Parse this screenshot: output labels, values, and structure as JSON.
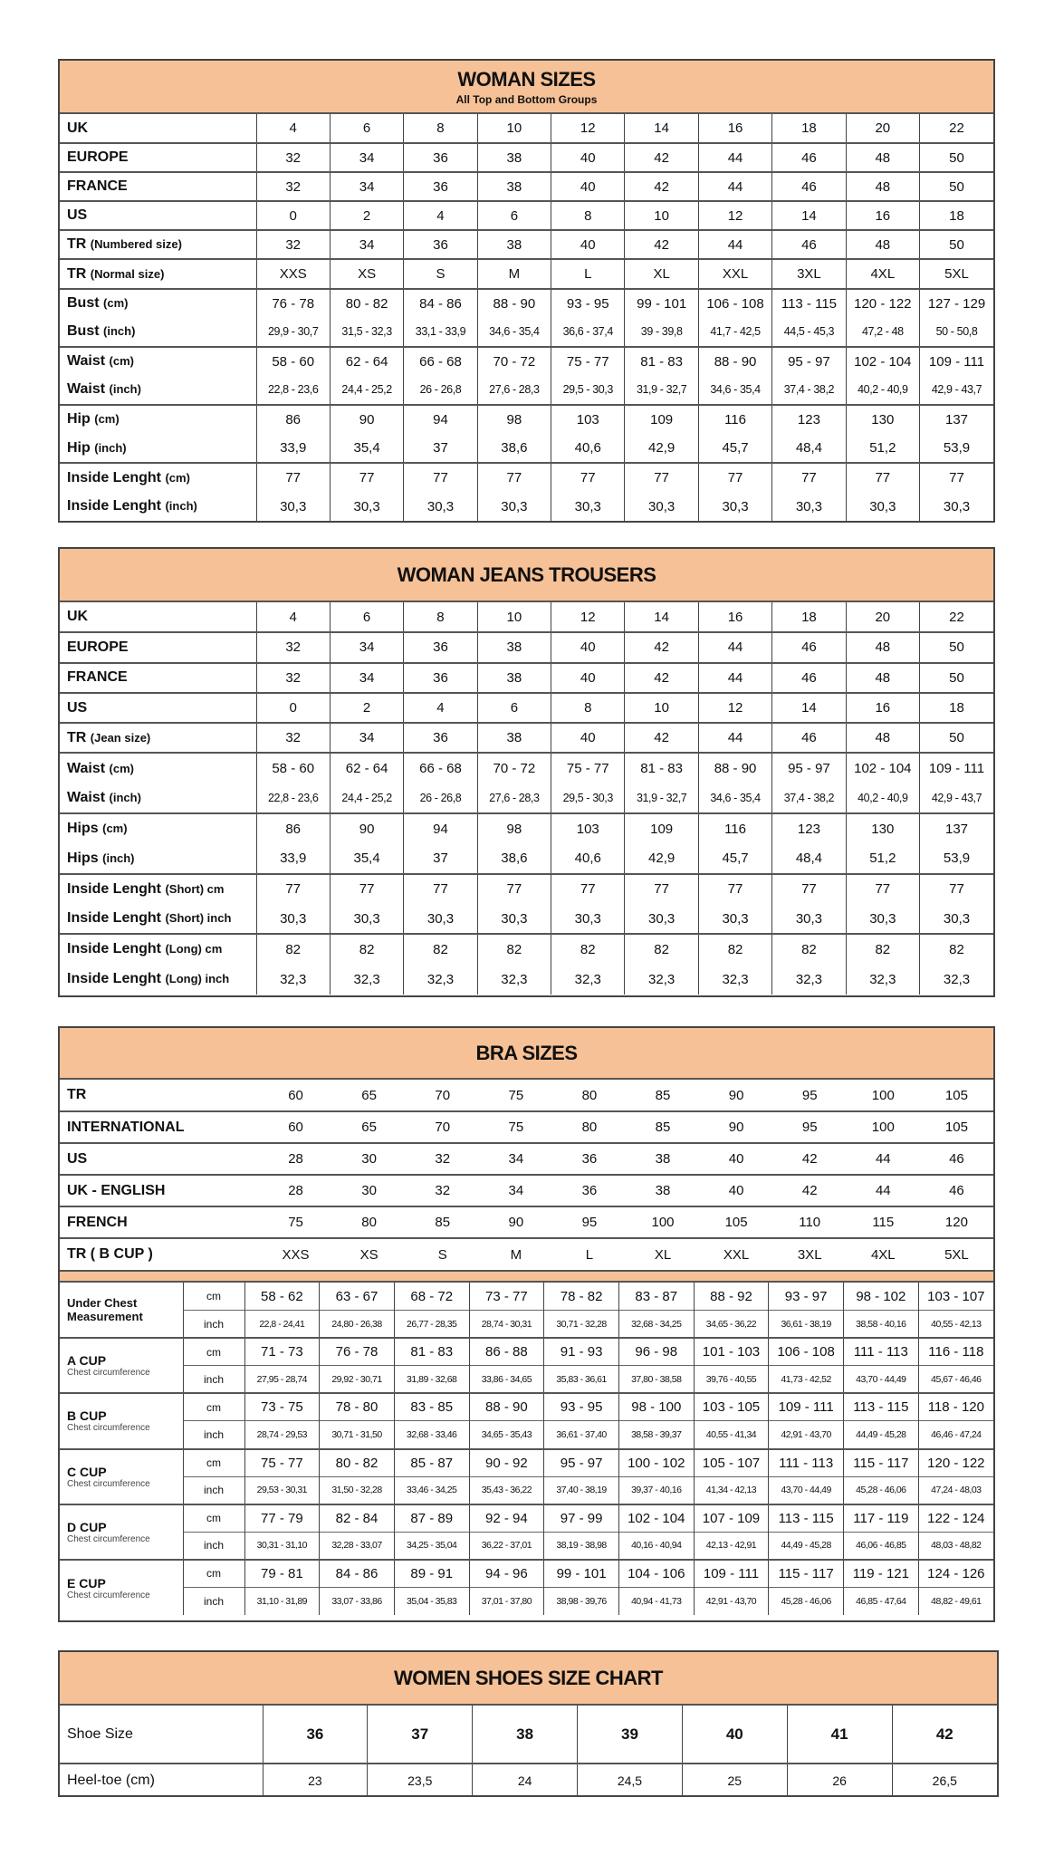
{
  "accent_color": "#f6c196",
  "woman_sizes": {
    "title": "WOMAN SIZES",
    "subtitle": "All Top and Bottom Groups",
    "groups": [
      [
        {
          "label": "UK",
          "sub": "",
          "values": [
            "4",
            "6",
            "8",
            "10",
            "12",
            "14",
            "16",
            "18",
            "20",
            "22"
          ]
        }
      ],
      [
        {
          "label": "EUROPE",
          "sub": "",
          "values": [
            "32",
            "34",
            "36",
            "38",
            "40",
            "42",
            "44",
            "46",
            "48",
            "50"
          ]
        }
      ],
      [
        {
          "label": "FRANCE",
          "sub": "",
          "values": [
            "32",
            "34",
            "36",
            "38",
            "40",
            "42",
            "44",
            "46",
            "48",
            "50"
          ]
        }
      ],
      [
        {
          "label": "US",
          "sub": "",
          "values": [
            "0",
            "2",
            "4",
            "6",
            "8",
            "10",
            "12",
            "14",
            "16",
            "18"
          ]
        }
      ],
      [
        {
          "label": "TR",
          "sub": "(Numbered size)",
          "values": [
            "32",
            "34",
            "36",
            "38",
            "40",
            "42",
            "44",
            "46",
            "48",
            "50"
          ]
        }
      ],
      [
        {
          "label": "TR",
          "sub": "(Normal size)",
          "values": [
            "XXS",
            "XS",
            "S",
            "M",
            "L",
            "XL",
            "XXL",
            "3XL",
            "4XL",
            "5XL"
          ]
        }
      ],
      [
        {
          "label": "Bust",
          "sub": "(cm)",
          "values": [
            "76 - 78",
            "80 - 82",
            "84 - 86",
            "88 - 90",
            "93 - 95",
            "99 - 101",
            "106 - 108",
            "113 - 115",
            "120 - 122",
            "127 - 129"
          ]
        },
        {
          "label": "Bust",
          "sub": "(inch)",
          "small": true,
          "values": [
            "29,9 - 30,7",
            "31,5 - 32,3",
            "33,1 - 33,9",
            "34,6 - 35,4",
            "36,6 - 37,4",
            "39 - 39,8",
            "41,7 - 42,5",
            "44,5 - 45,3",
            "47,2 - 48",
            "50 - 50,8"
          ]
        }
      ],
      [
        {
          "label": "Waist",
          "sub": "(cm)",
          "values": [
            "58 - 60",
            "62 - 64",
            "66 - 68",
            "70 - 72",
            "75 - 77",
            "81 - 83",
            "88 - 90",
            "95 - 97",
            "102 - 104",
            "109 - 111"
          ]
        },
        {
          "label": "Waist",
          "sub": "(inch)",
          "small": true,
          "values": [
            "22,8 - 23,6",
            "24,4 - 25,2",
            "26 - 26,8",
            "27,6 - 28,3",
            "29,5 - 30,3",
            "31,9 - 32,7",
            "34,6 - 35,4",
            "37,4 - 38,2",
            "40,2 - 40,9",
            "42,9 - 43,7"
          ]
        }
      ],
      [
        {
          "label": "Hip",
          "sub": "(cm)",
          "values": [
            "86",
            "90",
            "94",
            "98",
            "103",
            "109",
            "116",
            "123",
            "130",
            "137"
          ]
        },
        {
          "label": "Hip",
          "sub": "(inch)",
          "values": [
            "33,9",
            "35,4",
            "37",
            "38,6",
            "40,6",
            "42,9",
            "45,7",
            "48,4",
            "51,2",
            "53,9"
          ]
        }
      ],
      [
        {
          "label": "Inside Lenght",
          "sub": "(cm)",
          "values": [
            "77",
            "77",
            "77",
            "77",
            "77",
            "77",
            "77",
            "77",
            "77",
            "77"
          ]
        },
        {
          "label": "Inside Lenght",
          "sub": "(inch)",
          "values": [
            "30,3",
            "30,3",
            "30,3",
            "30,3",
            "30,3",
            "30,3",
            "30,3",
            "30,3",
            "30,3",
            "30,3"
          ]
        }
      ]
    ]
  },
  "jeans": {
    "title": "WOMAN JEANS TROUSERS",
    "groups": [
      [
        {
          "label": "UK",
          "sub": "",
          "values": [
            "4",
            "6",
            "8",
            "10",
            "12",
            "14",
            "16",
            "18",
            "20",
            "22"
          ]
        }
      ],
      [
        {
          "label": "EUROPE",
          "sub": "",
          "values": [
            "32",
            "34",
            "36",
            "38",
            "40",
            "42",
            "44",
            "46",
            "48",
            "50"
          ]
        }
      ],
      [
        {
          "label": "FRANCE",
          "sub": "",
          "values": [
            "32",
            "34",
            "36",
            "38",
            "40",
            "42",
            "44",
            "46",
            "48",
            "50"
          ]
        }
      ],
      [
        {
          "label": "US",
          "sub": "",
          "values": [
            "0",
            "2",
            "4",
            "6",
            "8",
            "10",
            "12",
            "14",
            "16",
            "18"
          ]
        }
      ],
      [
        {
          "label": "TR",
          "sub": "(Jean size)",
          "values": [
            "32",
            "34",
            "36",
            "38",
            "40",
            "42",
            "44",
            "46",
            "48",
            "50"
          ]
        }
      ],
      [
        {
          "label": "Waist",
          "sub": "(cm)",
          "values": [
            "58 - 60",
            "62 - 64",
            "66 - 68",
            "70 - 72",
            "75 - 77",
            "81 - 83",
            "88 - 90",
            "95 - 97",
            "102 - 104",
            "109 - 111"
          ]
        },
        {
          "label": "Waist",
          "sub": "(inch)",
          "small": true,
          "values": [
            "22,8 - 23,6",
            "24,4 - 25,2",
            "26 - 26,8",
            "27,6 - 28,3",
            "29,5 - 30,3",
            "31,9 - 32,7",
            "34,6 - 35,4",
            "37,4 - 38,2",
            "40,2 - 40,9",
            "42,9 - 43,7"
          ]
        }
      ],
      [
        {
          "label": "Hips",
          "sub": "(cm)",
          "values": [
            "86",
            "90",
            "94",
            "98",
            "103",
            "109",
            "116",
            "123",
            "130",
            "137"
          ]
        },
        {
          "label": "Hips",
          "sub": "(inch)",
          "values": [
            "33,9",
            "35,4",
            "37",
            "38,6",
            "40,6",
            "42,9",
            "45,7",
            "48,4",
            "51,2",
            "53,9"
          ]
        }
      ],
      [
        {
          "label": "Inside Lenght",
          "sub": "(Short) cm",
          "values": [
            "77",
            "77",
            "77",
            "77",
            "77",
            "77",
            "77",
            "77",
            "77",
            "77"
          ]
        },
        {
          "label": "Inside Lenght",
          "sub": "(Short) inch",
          "values": [
            "30,3",
            "30,3",
            "30,3",
            "30,3",
            "30,3",
            "30,3",
            "30,3",
            "30,3",
            "30,3",
            "30,3"
          ]
        }
      ],
      [
        {
          "label": "Inside Lenght",
          "sub": "(Long) cm",
          "values": [
            "82",
            "82",
            "82",
            "82",
            "82",
            "82",
            "82",
            "82",
            "82",
            "82"
          ]
        },
        {
          "label": "Inside Lenght",
          "sub": "(Long) inch",
          "values": [
            "32,3",
            "32,3",
            "32,3",
            "32,3",
            "32,3",
            "32,3",
            "32,3",
            "32,3",
            "32,3",
            "32,3"
          ]
        }
      ]
    ]
  },
  "bra": {
    "title": "BRA SIZES",
    "rows": [
      {
        "label": "TR",
        "values": [
          "60",
          "65",
          "70",
          "75",
          "80",
          "85",
          "90",
          "95",
          "100",
          "105"
        ]
      },
      {
        "label": "INTERNATIONAL",
        "values": [
          "60",
          "65",
          "70",
          "75",
          "80",
          "85",
          "90",
          "95",
          "100",
          "105"
        ]
      },
      {
        "label": "US",
        "values": [
          "28",
          "30",
          "32",
          "34",
          "36",
          "38",
          "40",
          "42",
          "44",
          "46"
        ]
      },
      {
        "label": "UK - ENGLISH",
        "values": [
          "28",
          "30",
          "32",
          "34",
          "36",
          "38",
          "40",
          "42",
          "44",
          "46"
        ]
      },
      {
        "label": "FRENCH",
        "values": [
          "75",
          "80",
          "85",
          "90",
          "95",
          "100",
          "105",
          "110",
          "115",
          "120"
        ]
      },
      {
        "label": "TR ( B CUP )",
        "values": [
          "XXS",
          "XS",
          "S",
          "M",
          "L",
          "XL",
          "XXL",
          "3XL",
          "4XL",
          "5XL"
        ]
      }
    ],
    "cups": [
      {
        "label": "Under Chest Measurement",
        "sub": "",
        "cm_unit": "cm",
        "inch_unit": "inch",
        "cm": [
          "58 - 62",
          "63 - 67",
          "68 - 72",
          "73 - 77",
          "78 - 82",
          "83 - 87",
          "88 - 92",
          "93 - 97",
          "98 - 102",
          "103 - 107"
        ],
        "inch": [
          "22,8 - 24,41",
          "24,80 - 26,38",
          "26,77 - 28,35",
          "28,74 - 30,31",
          "30,71 - 32,28",
          "32,68 - 34,25",
          "34,65 - 36,22",
          "36,61 - 38,19",
          "38,58 - 40,16",
          "40,55 - 42,13"
        ]
      },
      {
        "label": "A CUP",
        "sub": "Chest circumference",
        "cm_unit": "cm",
        "inch_unit": "inch",
        "cm": [
          "71 - 73",
          "76 - 78",
          "81 - 83",
          "86 - 88",
          "91 - 93",
          "96 - 98",
          "101 - 103",
          "106 - 108",
          "111 - 113",
          "116 - 118"
        ],
        "inch": [
          "27,95 - 28,74",
          "29,92 - 30,71",
          "31,89 - 32,68",
          "33,86 - 34,65",
          "35,83 - 36,61",
          "37,80 - 38,58",
          "39,76 - 40,55",
          "41,73 - 42,52",
          "43,70 - 44,49",
          "45,67 - 46,46"
        ]
      },
      {
        "label": "B CUP",
        "sub": "Chest circumference",
        "cm_unit": "cm",
        "inch_unit": "inch",
        "cm": [
          "73 - 75",
          "78 - 80",
          "83 - 85",
          "88 - 90",
          "93 - 95",
          "98 - 100",
          "103 - 105",
          "109 - 111",
          "113 - 115",
          "118 - 120"
        ],
        "inch": [
          "28,74 - 29,53",
          "30,71 - 31,50",
          "32,68 - 33,46",
          "34,65 - 35,43",
          "36,61 - 37,40",
          "38,58 - 39,37",
          "40,55 - 41,34",
          "42,91 - 43,70",
          "44,49 - 45,28",
          "46,46 - 47,24"
        ]
      },
      {
        "label": "C CUP",
        "sub": "Chest circumference",
        "cm_unit": "cm",
        "inch_unit": "inch",
        "cm": [
          "75 - 77",
          "80 - 82",
          "85 - 87",
          "90 - 92",
          "95 - 97",
          "100 - 102",
          "105 - 107",
          "111 - 113",
          "115 - 117",
          "120 - 122"
        ],
        "inch": [
          "29,53 - 30,31",
          "31,50 - 32,28",
          "33,46 - 34,25",
          "35,43 - 36,22",
          "37,40 - 38,19",
          "39,37 - 40,16",
          "41,34 - 42,13",
          "43,70 - 44,49",
          "45,28 - 46,06",
          "47,24 - 48,03"
        ]
      },
      {
        "label": "D CUP",
        "sub": "Chest circumference",
        "cm_unit": "cm",
        "inch_unit": "inch",
        "cm": [
          "77 - 79",
          "82 - 84",
          "87 - 89",
          "92 - 94",
          "97 - 99",
          "102 - 104",
          "107 - 109",
          "113 - 115",
          "117 - 119",
          "122 - 124"
        ],
        "inch": [
          "30,31 - 31,10",
          "32,28 - 33,07",
          "34,25 - 35,04",
          "36,22 - 37,01",
          "38,19 - 38,98",
          "40,16 - 40,94",
          "42,13 - 42,91",
          "44,49 - 45,28",
          "46,06 - 46,85",
          "48,03 - 48,82"
        ]
      },
      {
        "label": "E CUP",
        "sub": "Chest circumference",
        "cm_unit": "cm",
        "inch_unit": "inch",
        "cm": [
          "79 - 81",
          "84 - 86",
          "89 - 91",
          "94 - 96",
          "99 - 101",
          "104 - 106",
          "109 - 111",
          "115 - 117",
          "119 - 121",
          "124 - 126"
        ],
        "inch": [
          "31,10 - 31,89",
          "33,07 - 33,86",
          "35,04 - 35,83",
          "37,01 - 37,80",
          "38,98 - 39,76",
          "40,94 - 41,73",
          "42,91 - 43,70",
          "45,28 - 46,06",
          "46,85 - 47,64",
          "48,82 - 49,61"
        ]
      }
    ]
  },
  "shoes": {
    "title": "WOMEN SHOES SIZE CHART",
    "rows": [
      {
        "label": "Shoe Size",
        "values": [
          "36",
          "37",
          "38",
          "39",
          "40",
          "41",
          "42"
        ]
      },
      {
        "label": "Heel-toe (cm)",
        "values": [
          "23",
          "23,5",
          "24",
          "24,5",
          "25",
          "26",
          "26,5"
        ]
      }
    ]
  }
}
